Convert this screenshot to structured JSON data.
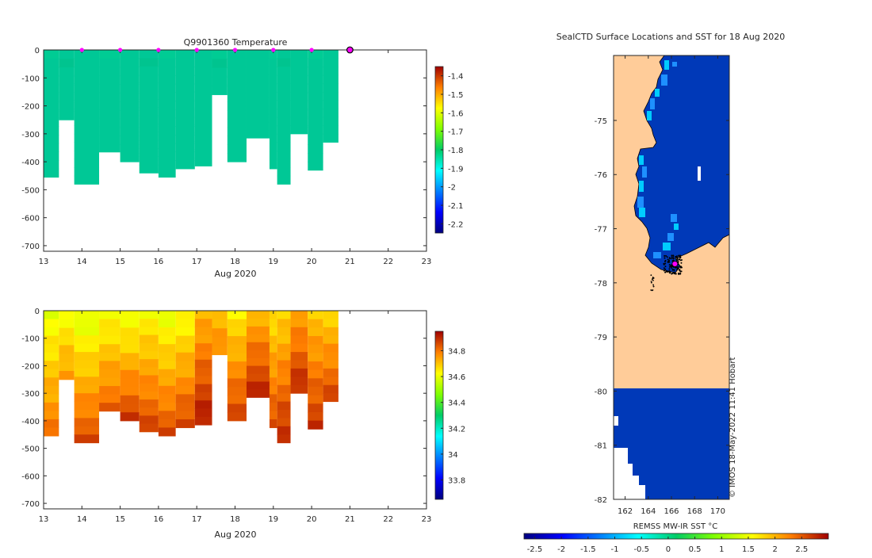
{
  "colors": {
    "land": "#FFCC99",
    "ocean_cold": "#0039B8",
    "profile_marker": "#FF00FF",
    "temp_fill": "#00C896"
  },
  "chart_data": [
    {
      "type": "heatmap",
      "title": "Q9901360  Temperature",
      "xlabel": "Aug 2020",
      "ylabel": "",
      "xlim": [
        13,
        23
      ],
      "ylim": [
        -720,
        0
      ],
      "xticks": [
        "13",
        "14",
        "15",
        "16",
        "17",
        "18",
        "19",
        "20",
        "21",
        "22",
        "23"
      ],
      "yticks": [
        "0",
        "-100",
        "-200",
        "-300",
        "-400",
        "-500",
        "-600",
        "-700"
      ],
      "colorbar": {
        "min": -2.25,
        "max": -1.35,
        "ticks": [
          "-1.4",
          "-1.5",
          "-1.6",
          "-1.7",
          "-1.8",
          "-1.9",
          "-2",
          "-2.1",
          "-2.2"
        ]
      },
      "profile_days": [
        14,
        15,
        16,
        17,
        18,
        19,
        20
      ],
      "current_day": 21,
      "columns": [
        {
          "x0": 13.0,
          "x1": 13.4,
          "bottom": -455
        },
        {
          "x0": 13.4,
          "x1": 13.8,
          "bottom": -250
        },
        {
          "x0": 13.8,
          "x1": 14.45,
          "bottom": -480
        },
        {
          "x0": 14.45,
          "x1": 15.0,
          "bottom": -365
        },
        {
          "x0": 15.0,
          "x1": 15.5,
          "bottom": -400
        },
        {
          "x0": 15.5,
          "x1": 16.0,
          "bottom": -440
        },
        {
          "x0": 16.0,
          "x1": 16.45,
          "bottom": -455
        },
        {
          "x0": 16.45,
          "x1": 16.95,
          "bottom": -425
        },
        {
          "x0": 16.95,
          "x1": 17.4,
          "bottom": -415
        },
        {
          "x0": 17.4,
          "x1": 17.8,
          "bottom": -160
        },
        {
          "x0": 17.8,
          "x1": 18.3,
          "bottom": -400
        },
        {
          "x0": 18.3,
          "x1": 18.9,
          "bottom": -315
        },
        {
          "x0": 18.9,
          "x1": 19.1,
          "bottom": -425
        },
        {
          "x0": 19.1,
          "x1": 19.45,
          "bottom": -480
        },
        {
          "x0": 19.45,
          "x1": 19.9,
          "bottom": -300
        },
        {
          "x0": 19.9,
          "x1": 20.3,
          "bottom": -430
        },
        {
          "x0": 20.3,
          "x1": 20.7,
          "bottom": -330
        }
      ]
    },
    {
      "type": "heatmap",
      "title": "",
      "xlabel": "Aug 2020",
      "ylabel": "",
      "xlim": [
        13,
        23
      ],
      "ylim": [
        -720,
        0
      ],
      "xticks": [
        "13",
        "14",
        "15",
        "16",
        "17",
        "18",
        "19",
        "20",
        "21",
        "22",
        "23"
      ],
      "yticks": [
        "0",
        "-100",
        "-200",
        "-300",
        "-400",
        "-500",
        "-600",
        "-700"
      ],
      "colorbar": {
        "min": 33.65,
        "max": 34.95,
        "ticks": [
          "34.8",
          "34.6",
          "34.4",
          "34.2",
          "34",
          "33.8"
        ]
      },
      "columns": [
        {
          "x0": 13.0,
          "x1": 13.4,
          "bottom": -455,
          "top": 34.6,
          "deep": 34.8
        },
        {
          "x0": 13.4,
          "x1": 13.8,
          "bottom": -250,
          "top": 34.62,
          "deep": 34.75
        },
        {
          "x0": 13.8,
          "x1": 14.45,
          "bottom": -480,
          "top": 34.58,
          "deep": 34.85
        },
        {
          "x0": 14.45,
          "x1": 15.0,
          "bottom": -365,
          "top": 34.62,
          "deep": 34.82
        },
        {
          "x0": 15.0,
          "x1": 15.5,
          "bottom": -400,
          "top": 34.6,
          "deep": 34.87
        },
        {
          "x0": 15.5,
          "x1": 16.0,
          "bottom": -440,
          "top": 34.63,
          "deep": 34.86
        },
        {
          "x0": 16.0,
          "x1": 16.45,
          "bottom": -455,
          "top": 34.6,
          "deep": 34.85
        },
        {
          "x0": 16.45,
          "x1": 16.95,
          "bottom": -425,
          "top": 34.62,
          "deep": 34.86
        },
        {
          "x0": 16.95,
          "x1": 17.4,
          "bottom": -415,
          "top": 34.72,
          "deep": 34.92
        },
        {
          "x0": 17.4,
          "x1": 17.8,
          "bottom": -160,
          "top": 34.7,
          "deep": 34.78
        },
        {
          "x0": 17.8,
          "x1": 18.3,
          "bottom": -400,
          "top": 34.65,
          "deep": 34.87
        },
        {
          "x0": 18.3,
          "x1": 18.9,
          "bottom": -315,
          "top": 34.72,
          "deep": 34.9
        },
        {
          "x0": 18.9,
          "x1": 19.1,
          "bottom": -425,
          "top": 34.66,
          "deep": 34.85
        },
        {
          "x0": 19.1,
          "x1": 19.45,
          "bottom": -480,
          "top": 34.68,
          "deep": 34.9
        },
        {
          "x0": 19.45,
          "x1": 19.9,
          "bottom": -300,
          "top": 34.74,
          "deep": 34.9
        },
        {
          "x0": 19.9,
          "x1": 20.3,
          "bottom": -430,
          "top": 34.7,
          "deep": 34.88
        },
        {
          "x0": 20.3,
          "x1": 20.7,
          "bottom": -330,
          "top": 34.68,
          "deep": 34.86
        }
      ]
    },
    {
      "type": "heatmap",
      "title": "SealCTD Surface Locations and SST for 18 Aug 2020",
      "xlabel": "",
      "ylabel": "",
      "xlim": [
        161,
        171
      ],
      "ylim": [
        -82,
        -73.8
      ],
      "xticks": [
        "162",
        "164",
        "166",
        "168",
        "170"
      ],
      "yticks": [
        "-75",
        "-76",
        "-77",
        "-78",
        "-79",
        "-80",
        "-81",
        "-82"
      ],
      "colorbar_label": "REMSS MW-IR SST °C",
      "colorbar": {
        "min": -2.7,
        "max": 3.0,
        "ticks": [
          "-2.5",
          "-2",
          "-1.5",
          "-1",
          "-0.5",
          "0",
          "0.5",
          "1",
          "1.5",
          "2",
          "2.5"
        ]
      },
      "current_location": {
        "lon": 166.3,
        "lat": -77.65
      },
      "watermark": "© IMOS 18-May-2022 11:41 Hobart"
    }
  ]
}
